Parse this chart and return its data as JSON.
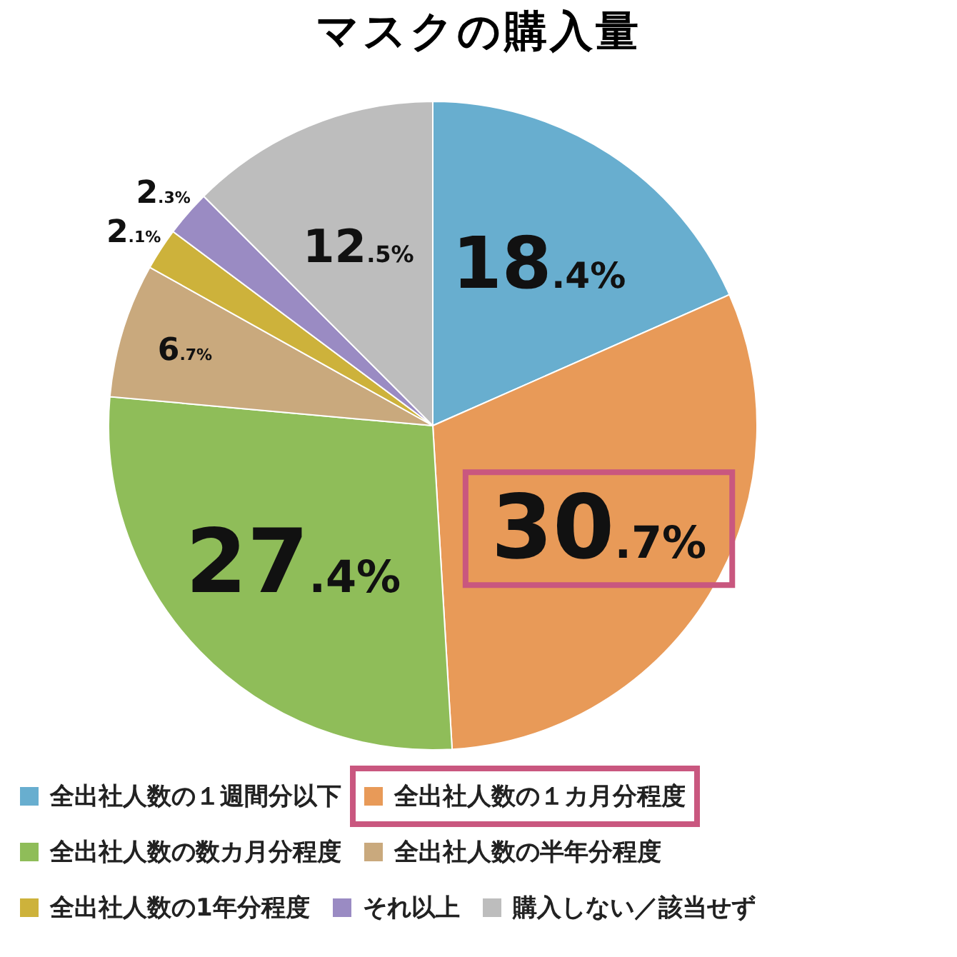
{
  "chart_data": {
    "type": "pie",
    "title": "マスクの購入量",
    "categories": [
      "全出社人数の１週間分以下",
      "全出社人数の１カ月分程度",
      "全出社人数の数カ月分程度",
      "全出社人数の半年分程度",
      "全出社人数の1年分程度",
      "それ以上",
      "購入しない／該当せず"
    ],
    "values": [
      18.4,
      30.7,
      27.4,
      6.7,
      2.1,
      2.3,
      12.5
    ],
    "colors": [
      "#68aecf",
      "#e89a58",
      "#8fbd59",
      "#c9a97d",
      "#cdb23b",
      "#9a8bc3",
      "#bdbdbd"
    ],
    "value_labels": [
      "18.4%",
      "30.7%",
      "27.4%",
      "6.7%",
      "2.1%",
      "2.3%",
      "12.5%"
    ],
    "legend": "bottom"
  }
}
